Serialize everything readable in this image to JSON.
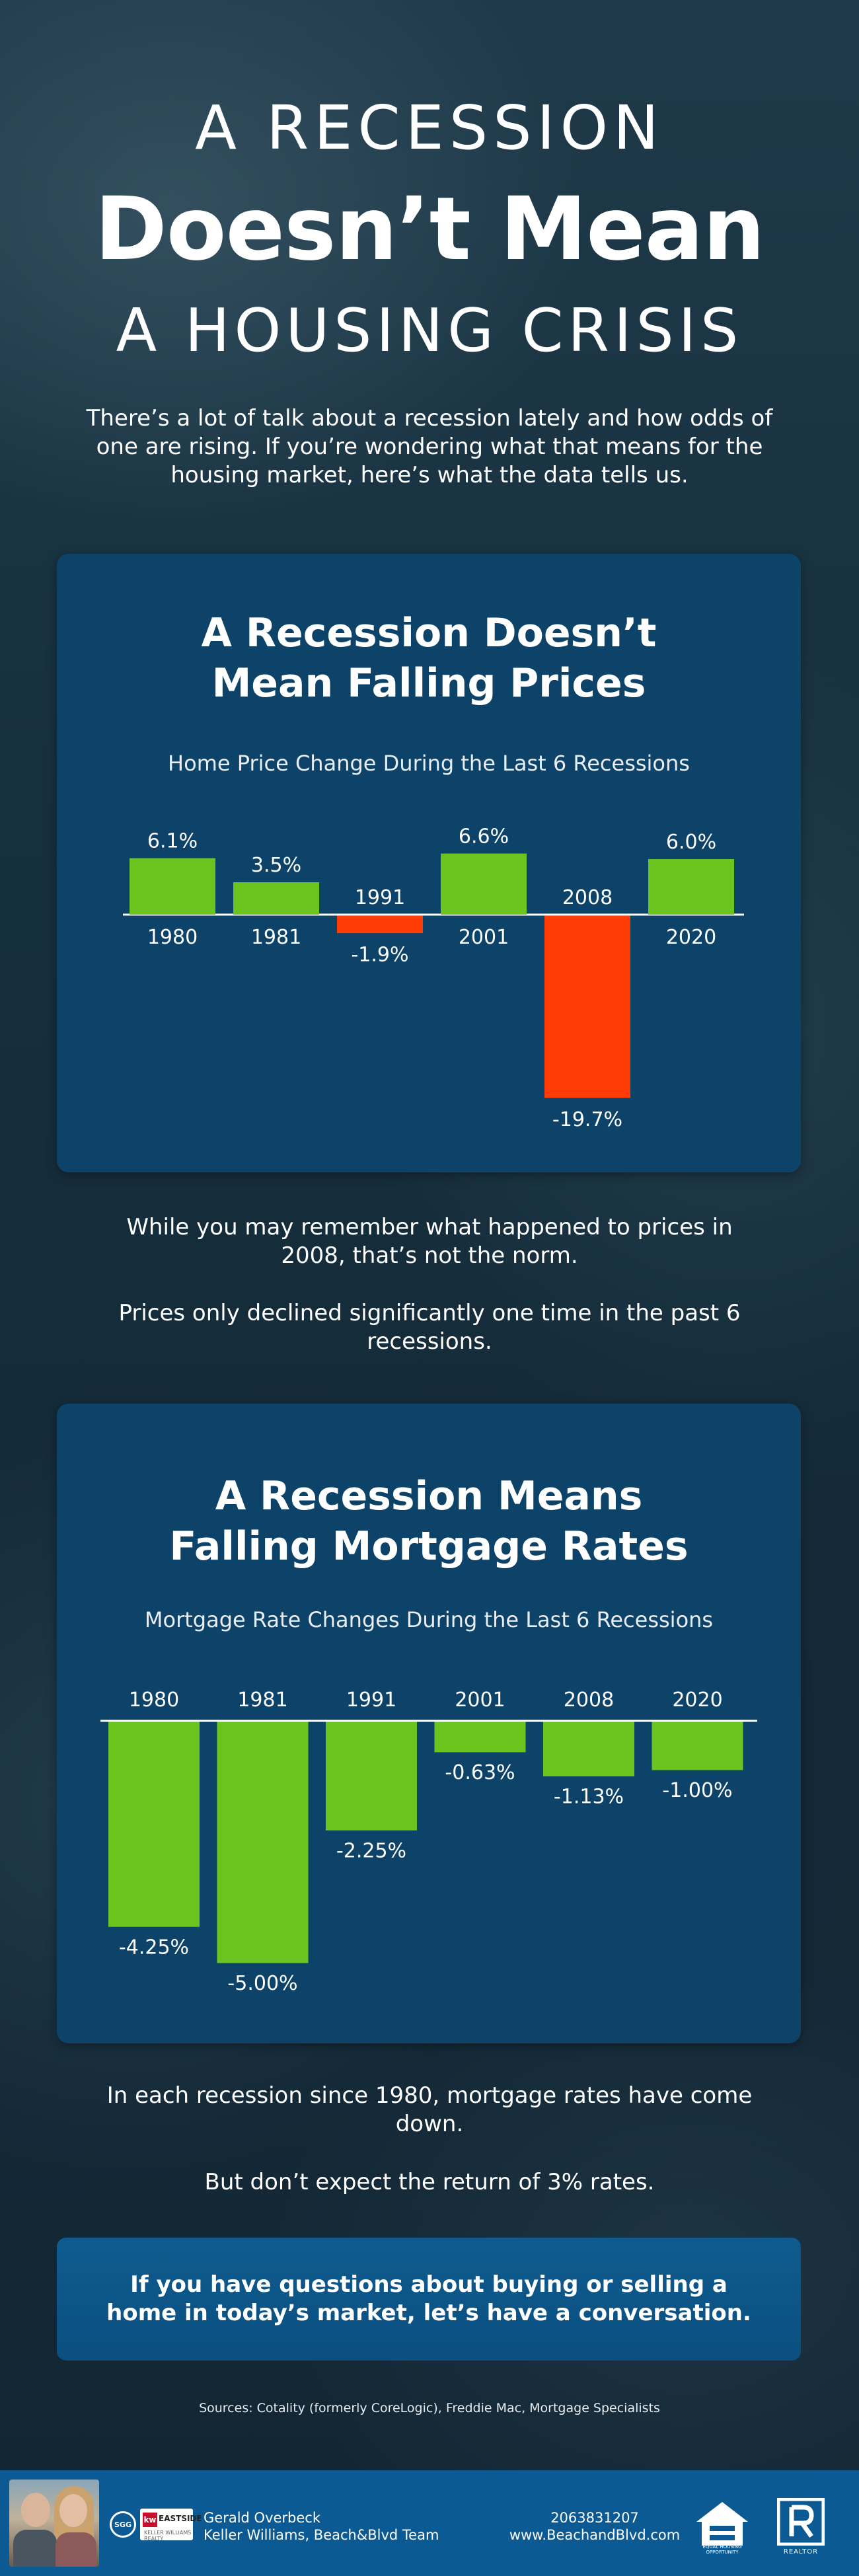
{
  "header": {
    "line1": "A RECESSION",
    "line2": "Doesn’t Mean",
    "line3": "A HOUSING CRISIS"
  },
  "intro": "There’s a lot of talk about a recession lately and how odds of one are rising. If you’re wondering what that means for the housing market, here’s what the data tells us.",
  "colors": {
    "positive_bar": "#6cc51e",
    "negative_bar": "#ff3b06",
    "panel_bg": "#0d4369",
    "footer_bg": "#0b5a93"
  },
  "chart_data": [
    {
      "type": "bar",
      "title_lines": [
        "A Recession Doesn’t",
        "Mean Falling Prices"
      ],
      "subtitle": "Home Price Change During the Last 6 Recessions",
      "categories": [
        "1980",
        "1981",
        "1991",
        "2001",
        "2008",
        "2020"
      ],
      "values": [
        6.1,
        3.5,
        -1.9,
        6.6,
        -19.7,
        6.0
      ],
      "value_labels": [
        "6.1%",
        "3.5%",
        "-1.9%",
        "6.6%",
        "-19.7%",
        "6.0%"
      ],
      "ylim": [
        -20,
        7
      ],
      "grid": false
    },
    {
      "type": "bar",
      "title_lines": [
        "A Recession Means",
        "Falling Mortgage Rates"
      ],
      "subtitle": "Mortgage Rate Changes During the Last 6 Recessions",
      "categories": [
        "1980",
        "1981",
        "1991",
        "2001",
        "2008",
        "2020"
      ],
      "values": [
        -4.25,
        -5.0,
        -2.25,
        -0.63,
        -1.13,
        -1.0
      ],
      "value_labels": [
        "-4.25%",
        "-5.00%",
        "-2.25%",
        "-0.63%",
        "-1.13%",
        "-1.00%"
      ],
      "ylim": [
        -5,
        0
      ],
      "grid": false
    }
  ],
  "middle_text": {
    "p1": "While you may remember what happened to prices in 2008, that’s not the norm.",
    "p2": "Prices only declined significantly one time in the past 6 recessions."
  },
  "lower_text": {
    "p1": "In each recession since 1980, mortgage rates have come down.",
    "p2": "But don’t expect the return of 3% rates."
  },
  "cta": "If you have questions about buying or selling a home in today’s market, let’s have a conversation.",
  "sources": "Sources: Cotality (formerly CoreLogic), Freddie Mac, Mortgage Specialists",
  "footer": {
    "agent_name": "Gerald Overbeck",
    "agent_team": "Keller Williams, Beach&Blvd Team",
    "phone": "2063831207",
    "website": "www.BeachandBlvd.com",
    "sgg_badge": "SGG",
    "kw_logo": "kw",
    "kw_name": "EASTSIDE",
    "kw_sub": "KELLER WILLIAMS REALTY",
    "eho_label": "EQUAL HOUSING OPPORTUNITY",
    "realtor_label": "REALTOR",
    "icons": [
      "agent-photo",
      "sgg-badge",
      "keller-williams-logo",
      "equal-housing-icon",
      "realtor-icon"
    ]
  }
}
